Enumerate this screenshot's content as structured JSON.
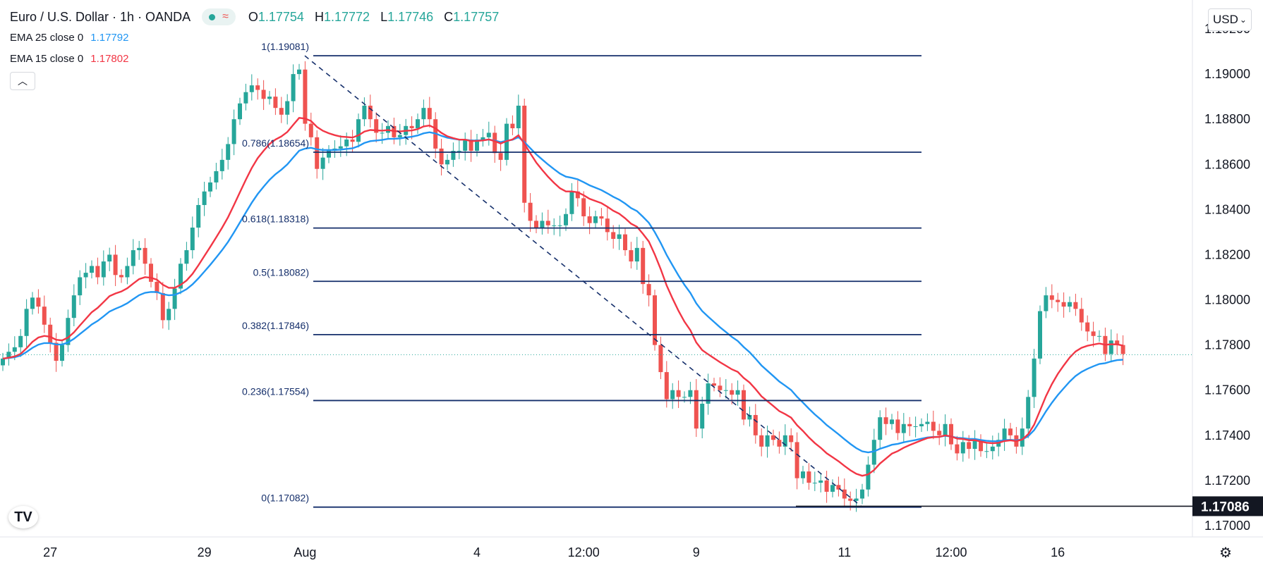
{
  "header": {
    "symbol": "Euro / U.S. Dollar · 1h · OANDA",
    "open_label": "O",
    "open": "1.17754",
    "high_label": "H",
    "high": "1.17772",
    "low_label": "L",
    "low": "1.17746",
    "close_label": "C",
    "close": "1.17757"
  },
  "indicators": [
    {
      "label": "EMA 25 close 0",
      "value": "1.17792",
      "color": "#2196f3"
    },
    {
      "label": "EMA 15 close 0",
      "value": "1.17802",
      "color": "#f23645"
    }
  ],
  "currency_button": "USD",
  "collapse_icon": "chevron-up-icon",
  "colors": {
    "up": "#26a69a",
    "down": "#ef5350",
    "fib": "#152f6b",
    "ema25": "#2196f3",
    "ema15": "#f23645",
    "axis_text": "#131722"
  },
  "chart_data": {
    "type": "line",
    "symbol": "EURUSD",
    "timeframe": "1h",
    "ylim": [
      1.1695,
      1.1925
    ],
    "y_ticks": [
      "1.19200",
      "1.19000",
      "1.18800",
      "1.18600",
      "1.18400",
      "1.18200",
      "1.18000",
      "1.17800",
      "1.17600",
      "1.17400",
      "1.17200",
      "1.17000"
    ],
    "y_tick_values": [
      1.192,
      1.19,
      1.188,
      1.186,
      1.184,
      1.182,
      1.18,
      1.178,
      1.176,
      1.174,
      1.172,
      1.17
    ],
    "x_ticks": [
      "27",
      "29",
      "Aug",
      "4",
      "12:00",
      "9",
      "11",
      "12:00",
      "16"
    ],
    "x_tick_index": [
      8,
      34,
      51,
      80,
      98,
      117,
      142,
      160,
      178
    ],
    "price_label": "1.17086",
    "last_price": 1.17757,
    "fib_levels": [
      {
        "ratio": "1",
        "price": "1.19081",
        "label": "1(1.19081)"
      },
      {
        "ratio": "0.786",
        "price": "1.18654",
        "label": "0.786(1.18654)"
      },
      {
        "ratio": "0.618",
        "price": "1.18318",
        "label": "0.618(1.18318)"
      },
      {
        "ratio": "0.5",
        "price": "1.18082",
        "label": "0.5(1.18082)"
      },
      {
        "ratio": "0.382",
        "price": "1.17846",
        "label": "0.382(1.17846)"
      },
      {
        "ratio": "0.236",
        "price": "1.17554",
        "label": "0.236(1.17554)"
      },
      {
        "ratio": "0",
        "price": "1.17082",
        "label": "0(1.17082)"
      }
    ],
    "fib_trend": {
      "from_index": 50,
      "from_price": 1.19081,
      "to_index": 145,
      "to_price": 1.17082
    },
    "close": [
      1.1774,
      1.1777,
      1.1779,
      1.1784,
      1.1796,
      1.1801,
      1.1797,
      1.1789,
      1.1781,
      1.1773,
      1.178,
      1.1792,
      1.1802,
      1.181,
      1.1812,
      1.1815,
      1.181,
      1.1817,
      1.182,
      1.1811,
      1.181,
      1.1815,
      1.1822,
      1.1823,
      1.1816,
      1.1808,
      1.1803,
      1.1791,
      1.1796,
      1.1805,
      1.1816,
      1.1822,
      1.1832,
      1.1842,
      1.1848,
      1.1852,
      1.1857,
      1.1862,
      1.1869,
      1.188,
      1.1887,
      1.1892,
      1.1895,
      1.1893,
      1.1889,
      1.189,
      1.1885,
      1.1882,
      1.1888,
      1.19,
      1.1902,
      1.1878,
      1.1872,
      1.1858,
      1.1863,
      1.1866,
      1.1867,
      1.1868,
      1.1871,
      1.187,
      1.188,
      1.1886,
      1.188,
      1.1874,
      1.1874,
      1.1877,
      1.1872,
      1.1873,
      1.1877,
      1.1876,
      1.188,
      1.1885,
      1.188,
      1.1867,
      1.186,
      1.1862,
      1.1866,
      1.1866,
      1.1871,
      1.1866,
      1.1871,
      1.1872,
      1.1874,
      1.1865,
      1.1862,
      1.1878,
      1.1876,
      1.1886,
      1.1843,
      1.1835,
      1.1832,
      1.1835,
      1.1833,
      1.1833,
      1.1833,
      1.1838,
      1.1848,
      1.1845,
      1.1837,
      1.1834,
      1.1837,
      1.1836,
      1.183,
      1.1827,
      1.1829,
      1.1822,
      1.1817,
      1.1823,
      1.1807,
      1.1802,
      1.178,
      1.1768,
      1.1756,
      1.176,
      1.1757,
      1.1757,
      1.176,
      1.1743,
      1.1754,
      1.1763,
      1.1762,
      1.176,
      1.176,
      1.1758,
      1.176,
      1.1747,
      1.1749,
      1.174,
      1.1735,
      1.174,
      1.1738,
      1.1735,
      1.174,
      1.1737,
      1.1721,
      1.1724,
      1.1719,
      1.1719,
      1.172,
      1.1715,
      1.1718,
      1.1716,
      1.1712,
      1.1711,
      1.1712,
      1.1716,
      1.1727,
      1.1738,
      1.1748,
      1.1745,
      1.1747,
      1.1741,
      1.1745,
      1.1744,
      1.1744,
      1.1745,
      1.1746,
      1.1742,
      1.174,
      1.1745,
      1.1736,
      1.1732,
      1.1737,
      1.1734,
      1.1738,
      1.1733,
      1.1733,
      1.1735,
      1.1738,
      1.1743,
      1.174,
      1.1735,
      1.1743,
      1.1757,
      1.1774,
      1.1795,
      1.1802,
      1.18,
      1.1799,
      1.1797,
      1.1799,
      1.1796,
      1.179,
      1.1786,
      1.1784,
      1.1784,
      1.1776,
      1.1782,
      1.178,
      1.1776
    ],
    "series": [
      {
        "name": "EMA 25 close 0",
        "color": "#2196f3"
      },
      {
        "name": "EMA 15 close 0",
        "color": "#f23645"
      }
    ]
  }
}
